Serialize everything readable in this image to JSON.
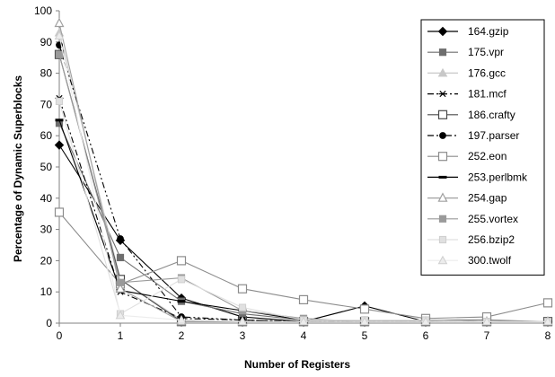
{
  "chart_data": {
    "type": "line",
    "title": "",
    "xlabel": "Number of Registers",
    "ylabel": "Percentage of Dynamic Superblocks",
    "x": [
      0,
      1,
      2,
      3,
      4,
      5,
      6,
      7,
      8
    ],
    "xlim": [
      0,
      8
    ],
    "ylim": [
      0,
      100
    ],
    "yticks": [
      0,
      10,
      20,
      30,
      40,
      50,
      60,
      70,
      80,
      90,
      100
    ],
    "grid": false,
    "legend_position": "right",
    "series": [
      {
        "name": "164.gzip",
        "color": "#000000",
        "marker": "diamond-filled",
        "dash": "solid",
        "values": [
          57,
          26.5,
          8,
          2,
          0.5,
          5.5,
          0.5,
          0.5,
          0.5
        ]
      },
      {
        "name": "175.vpr",
        "color": "#6e6e6e",
        "marker": "square-filled",
        "dash": "solid",
        "values": [
          64,
          21,
          7,
          3,
          1,
          1,
          1,
          1,
          0.5
        ]
      },
      {
        "name": "176.gcc",
        "color": "#c8c8c8",
        "marker": "triangle-filled",
        "dash": "solid",
        "values": [
          93,
          14,
          1,
          0.5,
          0.5,
          0.5,
          0.5,
          0.5,
          0.5
        ]
      },
      {
        "name": "181.mcf",
        "color": "#000000",
        "marker": "star",
        "dash": "dashdot",
        "values": [
          72,
          10,
          1.5,
          1,
          0.5,
          0.5,
          0.5,
          0.5,
          0.5
        ]
      },
      {
        "name": "186.crafty",
        "color": "#4a4a4a",
        "marker": "square-open",
        "dash": "solid",
        "values": [
          86,
          14,
          0.5,
          0.5,
          0.5,
          0.5,
          0.5,
          0.5,
          0.5
        ]
      },
      {
        "name": "197.parser",
        "color": "#000000",
        "marker": "circle-filled",
        "dash": "dashdotdot",
        "values": [
          89,
          27,
          2,
          1,
          0.5,
          0.5,
          0.5,
          0.5,
          0.5
        ]
      },
      {
        "name": "252.eon",
        "color": "#8c8c8c",
        "marker": "square-open",
        "dash": "solid",
        "values": [
          35.5,
          12.5,
          20,
          11,
          7.5,
          4.5,
          1.5,
          2,
          6.5
        ]
      },
      {
        "name": "253.perlbmk",
        "color": "#000000",
        "marker": "dash",
        "dash": "solid",
        "values": [
          65,
          10.5,
          7,
          4,
          1,
          1,
          1,
          0.5,
          0.5
        ]
      },
      {
        "name": "254.gap",
        "color": "#a0a0a0",
        "marker": "triangle-open",
        "dash": "solid",
        "values": [
          96,
          11,
          0.5,
          0.5,
          0.5,
          0.5,
          0.5,
          0.5,
          0.5
        ]
      },
      {
        "name": "255.vortex",
        "color": "#9a9a9a",
        "marker": "square-filled",
        "dash": "solid",
        "values": [
          86,
          13,
          14.5,
          4,
          1.5,
          0.5,
          0.5,
          0.5,
          0.5
        ]
      },
      {
        "name": "256.bzip2",
        "color": "#e0e0e0",
        "marker": "square-filled",
        "dash": "solid",
        "values": [
          71,
          3,
          14,
          5,
          1,
          1,
          1,
          0.5,
          0.5
        ]
      },
      {
        "name": "300.twolf",
        "color": "#ececec",
        "marker": "triangle-filled",
        "dash": "solid",
        "values": [
          92,
          2.5,
          1,
          0.5,
          0.5,
          0.5,
          0.5,
          0.5,
          0.5
        ]
      }
    ]
  }
}
